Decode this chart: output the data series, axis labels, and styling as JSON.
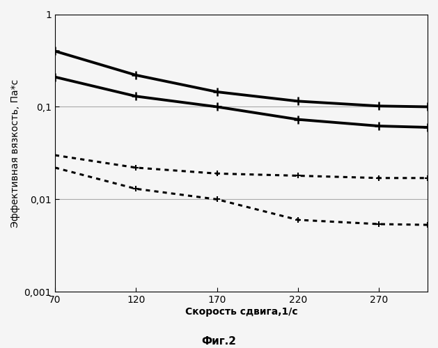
{
  "title": "",
  "xlabel": "Скорость сдвига,1/с",
  "ylabel": "Эффективная вязкость, Па*с",
  "caption": "Фиг.2",
  "xlim": [
    70,
    300
  ],
  "ylim": [
    0.001,
    1
  ],
  "xticks": [
    70,
    120,
    170,
    220,
    270
  ],
  "yticks": [
    0.001,
    0.01,
    0.1,
    1
  ],
  "ytick_labels": [
    "0,001",
    "0,01",
    "0,1",
    "1"
  ],
  "curve1_x": [
    70,
    120,
    170,
    220,
    270,
    300
  ],
  "curve1_y": [
    0.4,
    0.22,
    0.145,
    0.115,
    0.102,
    0.1
  ],
  "curve2_x": [
    70,
    120,
    170,
    220,
    270,
    300
  ],
  "curve2_y": [
    0.21,
    0.13,
    0.1,
    0.073,
    0.062,
    0.06
  ],
  "curve3_x": [
    70,
    120,
    170,
    220,
    270,
    300
  ],
  "curve3_y": [
    0.03,
    0.022,
    0.019,
    0.018,
    0.017,
    0.017
  ],
  "curve4_x": [
    70,
    120,
    170,
    220,
    270,
    300
  ],
  "curve4_y": [
    0.022,
    0.013,
    0.01,
    0.006,
    0.0054,
    0.0053
  ],
  "hline1_y": 0.1,
  "hline2_y": 0.01,
  "background_color": "#f5f5f5"
}
